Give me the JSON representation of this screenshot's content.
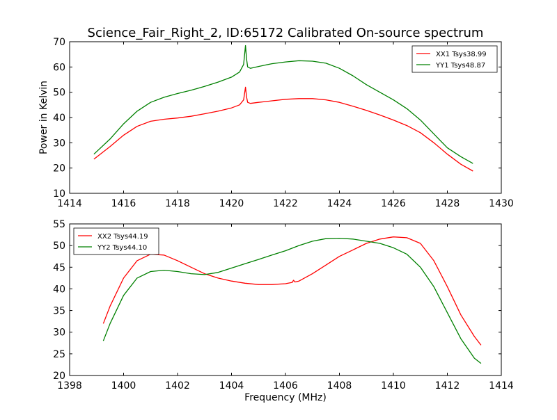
{
  "figure": {
    "title": "Science_Fair_Right_2, ID:65172 Calibrated On-source spectrum"
  },
  "chart_data": [
    {
      "type": "line",
      "title": "Science_Fair_Right_2, ID:65172 Calibrated On-source spectrum",
      "xlabel": "",
      "ylabel": "Power in Kelvin",
      "xlim": [
        1414,
        1430
      ],
      "ylim": [
        10,
        70
      ],
      "x_ticks": [
        "1414",
        "1416",
        "1418",
        "1420",
        "1422",
        "1424",
        "1426",
        "1428",
        "1430"
      ],
      "y_ticks": [
        "10",
        "20",
        "30",
        "40",
        "50",
        "60",
        "70"
      ],
      "legend_position": "top-right",
      "grid": false,
      "series": [
        {
          "name": "XX1 Tsys38.99",
          "color": "#ff0000",
          "x": [
            1414.9,
            1415.5,
            1416.0,
            1416.5,
            1417.0,
            1417.5,
            1418.0,
            1418.5,
            1419.0,
            1419.5,
            1420.0,
            1420.3,
            1420.45,
            1420.52,
            1420.56,
            1420.6,
            1420.7,
            1421.0,
            1421.5,
            1422.0,
            1422.5,
            1423.0,
            1423.5,
            1424.0,
            1424.5,
            1425.0,
            1425.5,
            1426.0,
            1426.5,
            1427.0,
            1427.5,
            1428.0,
            1428.5,
            1428.95
          ],
          "y": [
            23.5,
            28.5,
            33.0,
            36.5,
            38.5,
            39.3,
            39.8,
            40.5,
            41.5,
            42.5,
            43.8,
            45.0,
            47.0,
            52.0,
            48.0,
            46.0,
            45.6,
            46.0,
            46.6,
            47.2,
            47.5,
            47.5,
            47.0,
            46.0,
            44.5,
            42.8,
            41.0,
            39.0,
            36.8,
            34.0,
            30.0,
            25.5,
            21.5,
            18.8
          ]
        },
        {
          "name": "YY1 Tsys48.87",
          "color": "#008000",
          "x": [
            1414.9,
            1415.5,
            1416.0,
            1416.5,
            1417.0,
            1417.5,
            1418.0,
            1418.5,
            1419.0,
            1419.5,
            1420.0,
            1420.3,
            1420.45,
            1420.52,
            1420.56,
            1420.6,
            1420.7,
            1421.0,
            1421.5,
            1422.0,
            1422.5,
            1423.0,
            1423.5,
            1424.0,
            1424.5,
            1425.0,
            1425.5,
            1426.0,
            1426.5,
            1427.0,
            1427.5,
            1428.0,
            1428.5,
            1428.95
          ],
          "y": [
            25.5,
            31.5,
            37.5,
            42.5,
            46.0,
            48.0,
            49.5,
            50.8,
            52.3,
            54.0,
            56.0,
            58.0,
            61.0,
            68.5,
            63.0,
            60.0,
            59.5,
            60.2,
            61.3,
            62.0,
            62.5,
            62.3,
            61.5,
            59.5,
            56.5,
            53.0,
            50.0,
            47.0,
            43.5,
            39.0,
            33.5,
            28.0,
            24.5,
            21.8
          ]
        }
      ]
    },
    {
      "type": "line",
      "title": "",
      "xlabel": "Frequency (MHz)",
      "ylabel": "",
      "xlim": [
        1398,
        1414
      ],
      "ylim": [
        20,
        55
      ],
      "x_ticks": [
        "1398",
        "1400",
        "1402",
        "1404",
        "1406",
        "1408",
        "1410",
        "1412",
        "1414"
      ],
      "y_ticks": [
        "20",
        "25",
        "30",
        "35",
        "40",
        "45",
        "50",
        "55"
      ],
      "legend_position": "top-left",
      "grid": false,
      "series": [
        {
          "name": "XX2 Tsys44.19",
          "color": "#ff0000",
          "x": [
            1399.25,
            1399.5,
            1400.0,
            1400.5,
            1401.0,
            1401.5,
            1402.0,
            1402.5,
            1403.0,
            1403.5,
            1404.0,
            1404.5,
            1405.0,
            1405.5,
            1406.0,
            1406.25,
            1406.3,
            1406.35,
            1406.5,
            1407.0,
            1407.5,
            1408.0,
            1408.5,
            1409.0,
            1409.5,
            1410.0,
            1410.5,
            1411.0,
            1411.5,
            1412.0,
            1412.5,
            1413.0,
            1413.25
          ],
          "y": [
            32.0,
            36.0,
            42.5,
            46.5,
            48.0,
            47.8,
            46.5,
            45.0,
            43.5,
            42.5,
            41.8,
            41.3,
            41.0,
            41.0,
            41.2,
            41.5,
            42.0,
            41.6,
            41.8,
            43.5,
            45.5,
            47.5,
            49.0,
            50.5,
            51.5,
            52.0,
            51.8,
            50.5,
            46.5,
            40.5,
            34.0,
            29.0,
            27.0
          ]
        },
        {
          "name": "YY2 Tsys44.10",
          "color": "#008000",
          "x": [
            1399.25,
            1399.5,
            1400.0,
            1400.5,
            1401.0,
            1401.5,
            1402.0,
            1402.5,
            1403.0,
            1403.5,
            1404.0,
            1404.5,
            1405.0,
            1405.5,
            1406.0,
            1406.5,
            1407.0,
            1407.5,
            1408.0,
            1408.5,
            1409.0,
            1409.5,
            1410.0,
            1410.5,
            1411.0,
            1411.5,
            1412.0,
            1412.5,
            1413.0,
            1413.25
          ],
          "y": [
            28.0,
            32.0,
            38.5,
            42.5,
            44.0,
            44.3,
            44.0,
            43.5,
            43.3,
            43.8,
            44.8,
            45.8,
            46.8,
            47.8,
            48.8,
            50.0,
            51.0,
            51.6,
            51.7,
            51.5,
            51.0,
            50.5,
            49.5,
            48.0,
            45.0,
            40.5,
            34.5,
            28.5,
            24.0,
            22.8
          ]
        }
      ]
    }
  ]
}
